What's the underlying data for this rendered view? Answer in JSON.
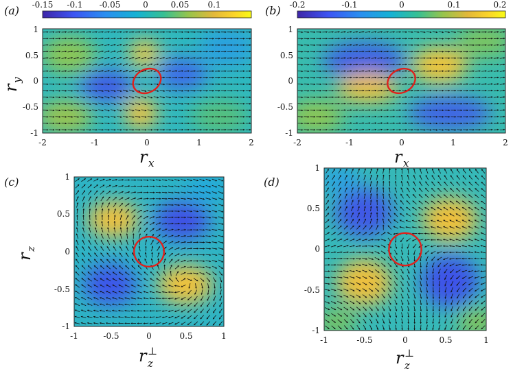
{
  "panels": [
    {
      "id": "a",
      "label": "(a)",
      "xlabel": "r",
      "xlabel_sub": "x",
      "ylabel": "r",
      "ylabel_sub": "y",
      "xticks": [
        "-2",
        "-1",
        "0",
        "1",
        "2"
      ],
      "yticks": [
        "1",
        "0.5",
        "0",
        "-0.5",
        "-1"
      ],
      "xlim": [
        -2,
        2
      ],
      "ylim": [
        -1,
        1
      ],
      "colorbar": {
        "ticks": [
          "-0.15",
          "-0.1",
          "-0.05",
          "0",
          "0.05",
          "0.1"
        ],
        "min": -0.15,
        "max": 0.15
      },
      "circle": {
        "cx": 0,
        "cy": 0,
        "rx": 0.28,
        "ry": 0.22,
        "color": "#e0201b"
      }
    },
    {
      "id": "b",
      "label": "(b)",
      "xlabel": "r",
      "xlabel_sub": "x",
      "xticks": [
        "-2",
        "-1",
        "0",
        "1",
        "2"
      ],
      "yticks": [
        "1",
        "0.5",
        "0",
        "-0.5",
        "-1"
      ],
      "xlim": [
        -2,
        2
      ],
      "ylim": [
        -1,
        1
      ],
      "colorbar": {
        "ticks": [
          "-0.2",
          "-0.1",
          "0",
          "0.1",
          "0.2"
        ],
        "min": -0.2,
        "max": 0.2
      },
      "circle": {
        "cx": 0,
        "cy": 0,
        "rx": 0.28,
        "ry": 0.22,
        "color": "#e0201b"
      }
    },
    {
      "id": "c",
      "label": "(c)",
      "xlabel": "r",
      "xlabel_sup": "⊥",
      "xlabel_sub": "z",
      "ylabel": "r",
      "ylabel_sub": "z",
      "xticks": [
        "-1",
        "-0.5",
        "0",
        "0.5",
        "1"
      ],
      "yticks": [
        "1",
        "0.5",
        "0",
        "-0.5",
        "-1"
      ],
      "xlim": [
        -1,
        1
      ],
      "ylim": [
        -1,
        1
      ],
      "circle": {
        "cx": 0,
        "cy": 0,
        "rx": 0.2,
        "ry": 0.2,
        "color": "#e0201b"
      }
    },
    {
      "id": "d",
      "label": "(d)",
      "xlabel": "r",
      "xlabel_sup": "⊥",
      "xlabel_sub": "z",
      "xticks": [
        "-1",
        "-0.5",
        "0",
        "0.5",
        "1"
      ],
      "yticks": [
        "1",
        "0.5",
        "0",
        "-0.5",
        "-1"
      ],
      "xlim": [
        -1,
        1
      ],
      "ylim": [
        -1,
        1
      ],
      "circle": {
        "cx": 0,
        "cy": 0,
        "rx": 0.2,
        "ry": 0.2,
        "color": "#e0201b"
      }
    }
  ],
  "colors": {
    "colormap": [
      "#3e26a8",
      "#3d55f3",
      "#2a8ef0",
      "#15b2d3",
      "#38c093",
      "#97c44c",
      "#e3b83a",
      "#fbd52a",
      "#f9fb15"
    ]
  }
}
